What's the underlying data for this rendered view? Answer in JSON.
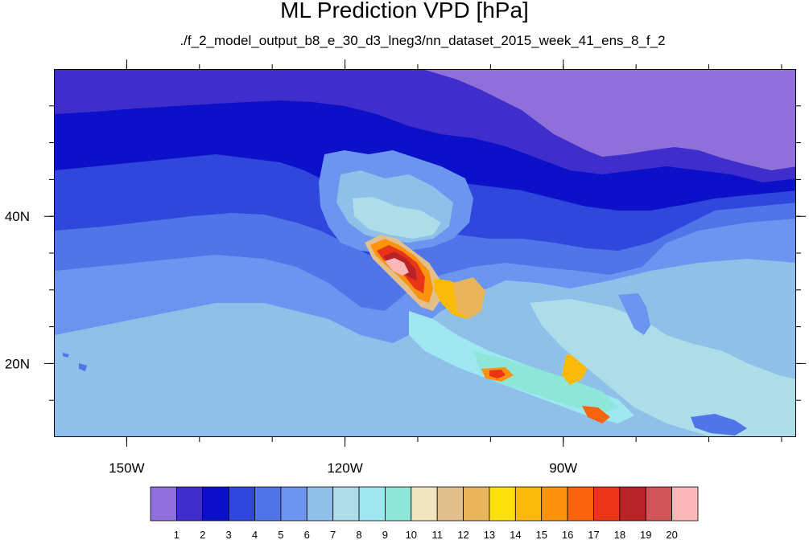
{
  "title": "ML Prediction VPD [hPa]",
  "subtitle": "./f_2_model_output_b8_e_30_d3_lneg3/nn_dataset_2015_week_41_ens_8_f_2",
  "map": {
    "lon_range": [
      -160,
      -58
    ],
    "lat_range": [
      10,
      60
    ],
    "x_ticks": [
      {
        "lon": -150,
        "label": "150W"
      },
      {
        "lon": -120,
        "label": "120W"
      },
      {
        "lon": -90,
        "label": "90W"
      }
    ],
    "y_ticks": [
      {
        "lat": 40,
        "label": "40N"
      },
      {
        "lat": 20,
        "label": "20N"
      }
    ]
  },
  "colorbar": {
    "colors": [
      "#8f6fd9",
      "#3f2ecc",
      "#0c10c8",
      "#2f47dd",
      "#4f75e8",
      "#6b95ee",
      "#8fc0ea",
      "#acdde8",
      "#9de8f0",
      "#8ee6d8",
      "#f2e4be",
      "#e1c08e",
      "#e8b55a",
      "#fde008",
      "#fbba0a",
      "#fb930f",
      "#fa640b",
      "#e93418",
      "#b82328",
      "#d05458",
      "#fcb8b8"
    ],
    "labels": [
      "1",
      "2",
      "3",
      "4",
      "5",
      "6",
      "7",
      "8",
      "9",
      "10",
      "11",
      "12",
      "13",
      "14",
      "15",
      "16",
      "17",
      "18",
      "19",
      "20"
    ]
  }
}
